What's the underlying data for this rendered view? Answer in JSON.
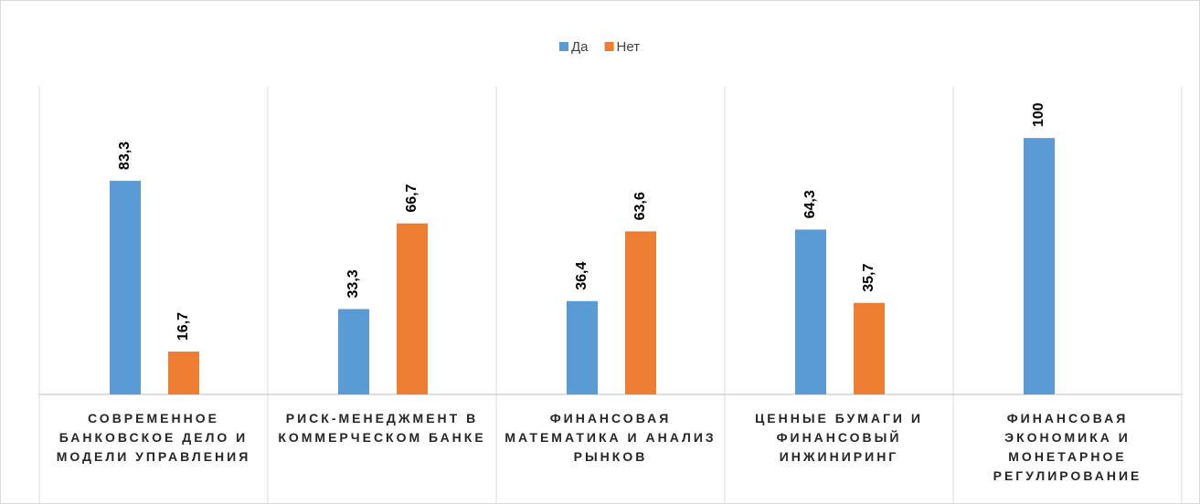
{
  "chart_data": {
    "type": "bar",
    "categories": [
      "СОВРЕМЕННОЕ БАНКОВСКОЕ ДЕЛО И МОДЕЛИ УПРАВЛЕНИЯ",
      "РИСК-МЕНЕДЖМЕНТ В КОММЕРЧЕСКОМ БАНКЕ",
      "ФИНАНСОВАЯ МАТЕМАТИКА И АНАЛИЗ РЫНКОВ",
      "ЦЕННЫЕ БУМАГИ И ФИНАНСОВЫЙ ИНЖИНИРИНГ",
      "ФИНАНСОВАЯ ЭКОНОМИКА И МОНЕТАРНОЕ РЕГУЛИРОВАНИЕ"
    ],
    "series": [
      {
        "name": "Да",
        "color": "#5b9bd5",
        "values": [
          83.3,
          33.3,
          36.4,
          64.3,
          100
        ],
        "value_labels": [
          "83,3",
          "33,3",
          "36,4",
          "64,3",
          "100"
        ]
      },
      {
        "name": "Нет",
        "color": "#ed7d31",
        "values": [
          16.7,
          66.7,
          63.6,
          35.7,
          null
        ],
        "value_labels": [
          "16,7",
          "66,7",
          "63,6",
          "35,7",
          null
        ]
      }
    ],
    "ylim": [
      0,
      120
    ],
    "legend": "top"
  }
}
